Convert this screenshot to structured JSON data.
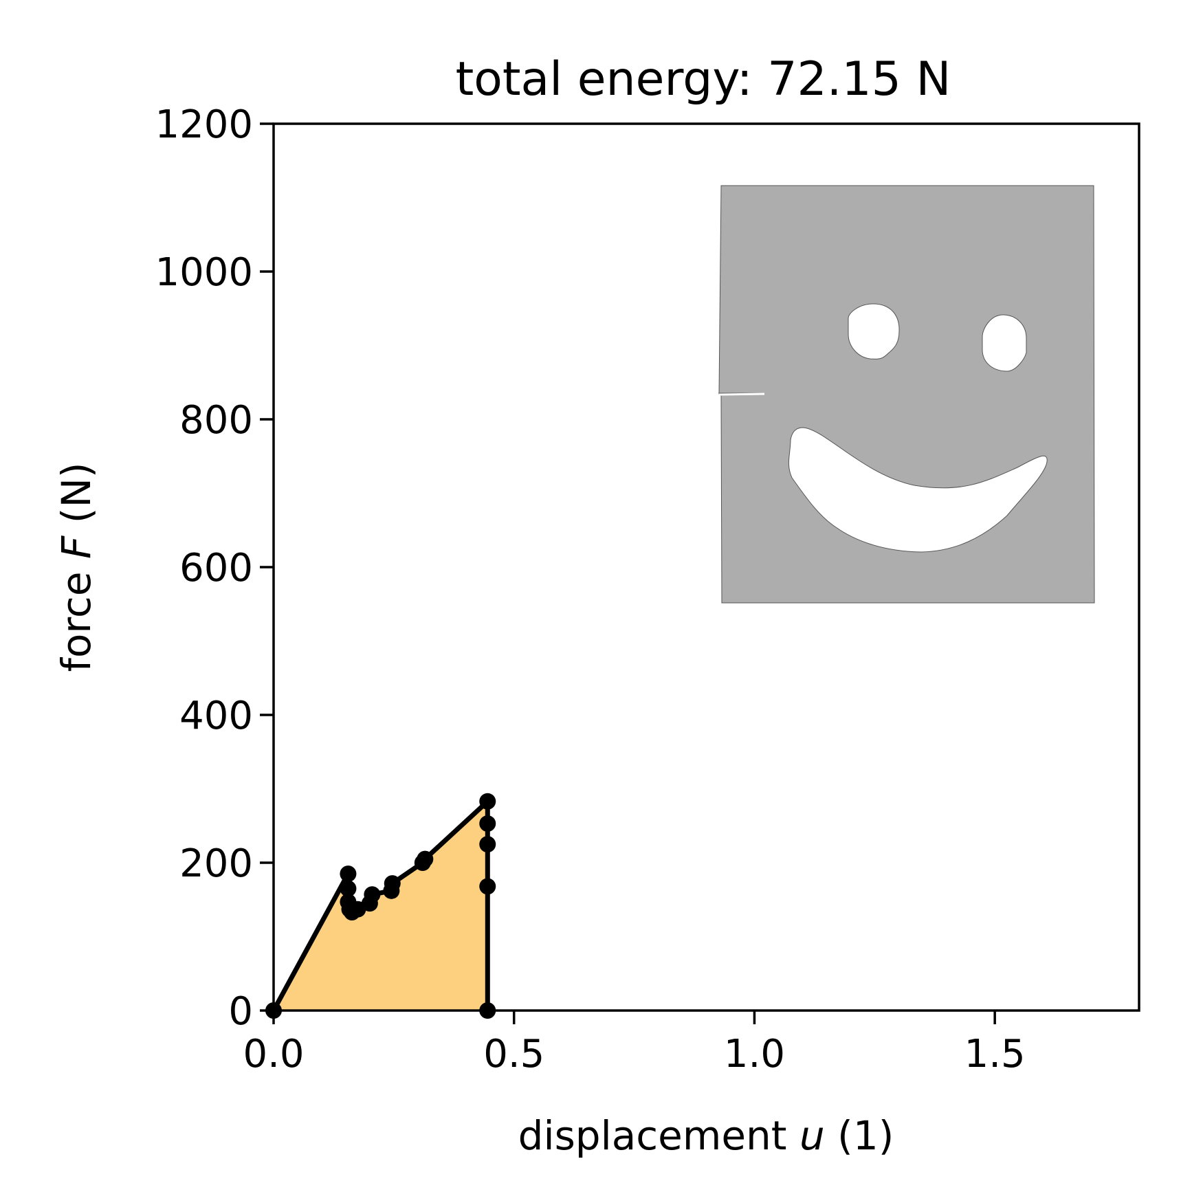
{
  "chart_data": {
    "type": "line",
    "title": "total energy: 72.15 N",
    "xlabel": {
      "prefix": "displacement ",
      "var": "u",
      "suffix": " (1)"
    },
    "ylabel": {
      "prefix": "force ",
      "var": "F",
      "suffix": " (N)"
    },
    "xlim": [
      0,
      1.8
    ],
    "ylim": [
      0,
      1200
    ],
    "xticks": [
      "0.0",
      "0.5",
      "1.0",
      "1.5"
    ],
    "xtick_values": [
      0,
      0.5,
      1.0,
      1.5
    ],
    "yticks": [
      "0",
      "200",
      "400",
      "600",
      "800",
      "1000",
      "1200"
    ],
    "ytick_values": [
      0,
      200,
      400,
      600,
      800,
      1000,
      1200
    ],
    "grid": false,
    "fill_color": "#fdd07f",
    "line_color": "#000000",
    "inset_color": "#adadad",
    "series": [
      {
        "x": [
          0,
          0.155,
          0.155,
          0.155,
          0.158,
          0.163,
          0.175,
          0.2,
          0.205,
          0.245,
          0.247,
          0.31,
          0.315,
          0.445,
          0.445,
          0.445,
          0.445,
          0.445
        ],
        "y": [
          0,
          185,
          165,
          147,
          137,
          133,
          137,
          145,
          157,
          162,
          172,
          200,
          205,
          283,
          253,
          225,
          168,
          0
        ]
      }
    ]
  }
}
